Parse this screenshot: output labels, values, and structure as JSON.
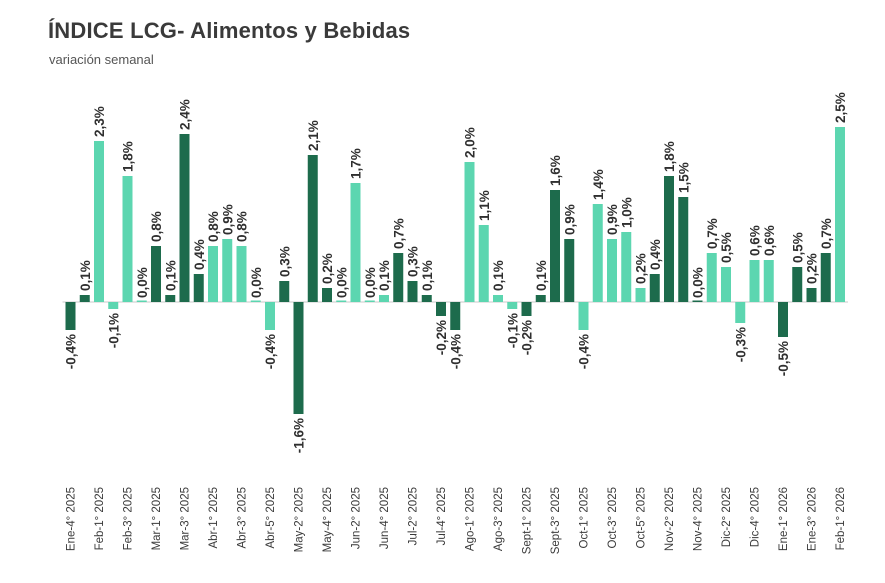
{
  "title": "ÍNDICE LCG- Alimentos y Bebidas",
  "subtitle": "variación semanal",
  "colors": {
    "dark": "#1d6b4c",
    "light": "#5cd6b0",
    "text": "#2f2f2f",
    "axis": "#c9c9c9"
  },
  "chart_data": {
    "type": "bar",
    "title": "ÍNDICE LCG- Alimentos y Bebidas",
    "subtitle": "variación semanal",
    "xlabel": "",
    "ylabel": "",
    "ylim": [
      -1.6,
      2.5
    ],
    "grid": false,
    "legend": "none",
    "categories": [
      "Ene-4° 2025",
      "",
      "Feb-1° 2025",
      "",
      "Feb-3° 2025",
      "",
      "Mar-1° 2025",
      "",
      "Mar-3° 2025",
      "",
      "Abr-1° 2025",
      "",
      "Abr-3° 2025",
      "",
      "Abr-5° 2025",
      "",
      "May-2° 2025",
      "",
      "May-4° 2025",
      "",
      "Jun-2° 2025",
      "",
      "Jun-4° 2025",
      "",
      "Jul-2° 2025",
      "",
      "Jul-4° 2025",
      "",
      "Ago-1° 2025",
      "",
      "Ago-3° 2025",
      "",
      "Sept-1° 2025",
      "",
      "Sept-3° 2025",
      "",
      "Oct-1° 2025",
      "",
      "Oct-3° 2025",
      "",
      "Oct-5° 2025",
      "",
      "Nov-2° 2025",
      "",
      "Nov-4° 2025",
      "",
      "Dic-2° 2025",
      "",
      "Dic-4° 2025",
      "",
      "Ene-1° 2026",
      "",
      "Ene-3° 2026",
      "",
      "Feb-1° 2026"
    ],
    "values": [
      -0.4,
      0.1,
      2.3,
      -0.1,
      1.8,
      0.0,
      0.8,
      0.1,
      2.4,
      0.4,
      0.8,
      0.9,
      0.8,
      0.0,
      -0.4,
      0.3,
      -1.6,
      2.1,
      0.2,
      0.0,
      1.7,
      0.0,
      0.1,
      0.7,
      0.3,
      0.1,
      -0.2,
      -0.4,
      2.0,
      1.1,
      0.1,
      -0.1,
      -0.2,
      0.1,
      1.6,
      0.9,
      -0.4,
      1.4,
      0.9,
      1.0,
      0.2,
      0.4,
      1.8,
      1.5,
      0.0,
      0.7,
      0.5,
      -0.3,
      0.6,
      0.6,
      -0.5,
      0.5,
      0.2,
      0.7,
      2.5
    ],
    "labels": [
      "-0,4%",
      "0,1%",
      "2,3%",
      "-0,1%",
      "1,8%",
      "0,0%",
      "0,8%",
      "0,1%",
      "2,4%",
      "0,4%",
      "0,8%",
      "0,9%",
      "0,8%",
      "0,0%",
      "-0,4%",
      "0,3%",
      "-1,6%",
      "2,1%",
      "0,2%",
      "0,0%",
      "1,7%",
      "0,0%",
      "0,1%",
      "0,7%",
      "0,3%",
      "0,1%",
      "-0,2%",
      "-0,4%",
      "2,0%",
      "1,1%",
      "0,1%",
      "-0,1%",
      "-0,2%",
      "0,1%",
      "1,6%",
      "0,9%",
      "-0,4%",
      "1,4%",
      "0,9%",
      "1,0%",
      "0,2%",
      "0,4%",
      "1,8%",
      "1,5%",
      "0,0%",
      "0,7%",
      "0,5%",
      "-0,3%",
      "0,6%",
      "0,6%",
      "-0,5%",
      "0,5%",
      "0,2%",
      "0,7%",
      "2,5%"
    ],
    "bar_colors": [
      "dark",
      "dark",
      "light",
      "light",
      "light",
      "light",
      "dark",
      "dark",
      "dark",
      "dark",
      "light",
      "light",
      "light",
      "light",
      "light",
      "dark",
      "dark",
      "dark",
      "dark",
      "light",
      "light",
      "light",
      "light",
      "dark",
      "dark",
      "dark",
      "dark",
      "dark",
      "light",
      "light",
      "light",
      "light",
      "dark",
      "dark",
      "dark",
      "dark",
      "light",
      "light",
      "light",
      "light",
      "light",
      "dark",
      "dark",
      "dark",
      "dark",
      "light",
      "light",
      "light",
      "light",
      "light",
      "dark",
      "dark",
      "dark",
      "dark",
      "light"
    ]
  }
}
